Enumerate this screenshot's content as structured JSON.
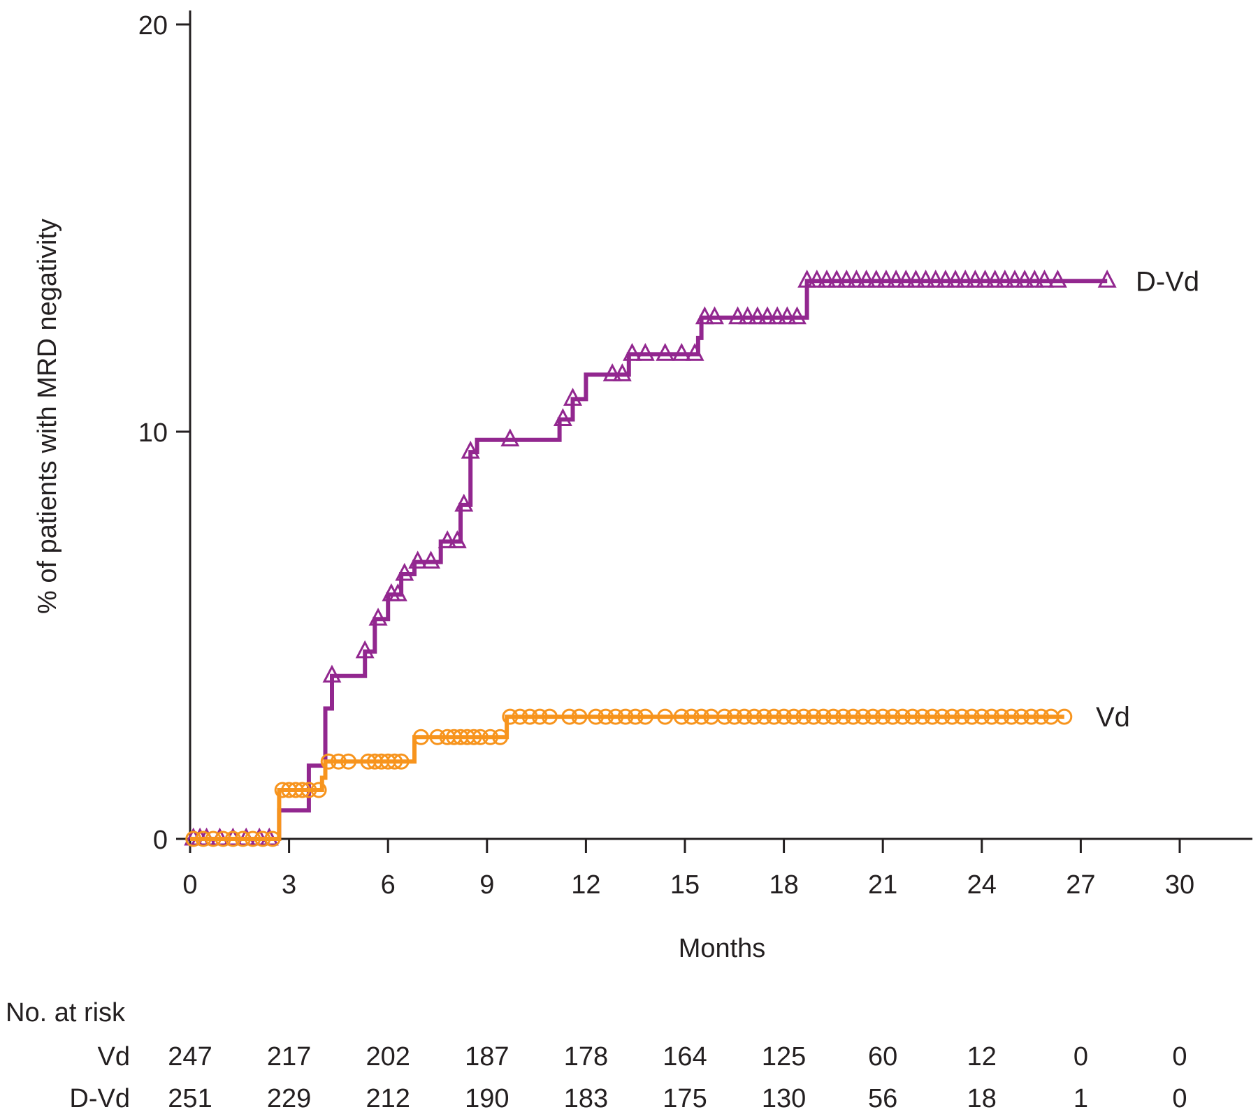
{
  "chart_data": {
    "type": "line",
    "title": "",
    "xlabel": "Months",
    "ylabel": "% of patients with MRD negativity",
    "xlim": [
      0,
      32
    ],
    "ylim": [
      0,
      20
    ],
    "x_ticks": [
      0,
      3,
      6,
      9,
      12,
      15,
      18,
      21,
      24,
      27,
      30
    ],
    "y_ticks": [
      0,
      10,
      20
    ],
    "colors": {
      "D-Vd": "#92278f",
      "Vd": "#f7941d",
      "axis": "#231f20"
    },
    "series": [
      {
        "name": "D-Vd",
        "marker": "triangle",
        "steps": [
          [
            0,
            0
          ],
          [
            2.7,
            0
          ],
          [
            2.7,
            0.7
          ],
          [
            3.6,
            0.7
          ],
          [
            3.6,
            1.8
          ],
          [
            4.1,
            1.8
          ],
          [
            4.1,
            3.2
          ],
          [
            4.3,
            3.2
          ],
          [
            4.3,
            4.0
          ],
          [
            5.3,
            4.0
          ],
          [
            5.3,
            4.6
          ],
          [
            5.6,
            4.6
          ],
          [
            5.6,
            5.4
          ],
          [
            6.0,
            5.4
          ],
          [
            6.0,
            6.0
          ],
          [
            6.4,
            6.0
          ],
          [
            6.4,
            6.5
          ],
          [
            6.8,
            6.5
          ],
          [
            6.8,
            6.8
          ],
          [
            7.6,
            6.8
          ],
          [
            7.6,
            7.3
          ],
          [
            8.2,
            7.3
          ],
          [
            8.2,
            8.2
          ],
          [
            8.5,
            8.2
          ],
          [
            8.5,
            9.5
          ],
          [
            8.7,
            9.5
          ],
          [
            8.7,
            9.8
          ],
          [
            11.2,
            9.8
          ],
          [
            11.2,
            10.3
          ],
          [
            11.6,
            10.3
          ],
          [
            11.6,
            10.8
          ],
          [
            12.0,
            10.8
          ],
          [
            12.0,
            11.4
          ],
          [
            13.3,
            11.4
          ],
          [
            13.3,
            11.9
          ],
          [
            15.4,
            11.9
          ],
          [
            15.4,
            12.3
          ],
          [
            15.5,
            12.3
          ],
          [
            15.5,
            12.8
          ],
          [
            18.7,
            12.8
          ],
          [
            18.7,
            13.7
          ],
          [
            27.8,
            13.7
          ]
        ],
        "censor_marks": [
          0.1,
          0.3,
          0.5,
          0.9,
          1.3,
          1.7,
          2.1,
          2.4,
          4.3,
          5.3,
          5.7,
          6.1,
          6.3,
          6.5,
          6.9,
          7.3,
          7.8,
          8.1,
          8.3,
          8.5,
          9.7,
          11.3,
          11.6,
          12.8,
          13.1,
          13.4,
          13.8,
          14.4,
          14.9,
          15.3,
          15.6,
          15.9,
          16.6,
          16.9,
          17.2,
          17.5,
          17.8,
          18.1,
          18.4,
          18.7,
          19.0,
          19.3,
          19.6,
          19.9,
          20.2,
          20.5,
          20.8,
          21.1,
          21.4,
          21.7,
          22.0,
          22.3,
          22.6,
          22.9,
          23.2,
          23.5,
          23.8,
          24.1,
          24.4,
          24.7,
          25.0,
          25.3,
          25.6,
          25.9,
          26.3,
          27.8
        ]
      },
      {
        "name": "Vd",
        "marker": "circle",
        "steps": [
          [
            0,
            0
          ],
          [
            2.7,
            0
          ],
          [
            2.7,
            1.2
          ],
          [
            4.0,
            1.2
          ],
          [
            4.0,
            1.5
          ],
          [
            4.1,
            1.5
          ],
          [
            4.1,
            1.9
          ],
          [
            6.8,
            1.9
          ],
          [
            6.8,
            2.5
          ],
          [
            9.6,
            2.5
          ],
          [
            9.6,
            3.0
          ],
          [
            26.5,
            3.0
          ]
        ],
        "censor_marks": [
          0.1,
          0.4,
          0.7,
          1.0,
          1.3,
          1.6,
          1.9,
          2.2,
          2.5,
          2.8,
          3.0,
          3.2,
          3.4,
          3.6,
          3.9,
          4.2,
          4.5,
          4.8,
          5.4,
          5.6,
          5.8,
          6.0,
          6.2,
          6.4,
          7.0,
          7.5,
          7.8,
          8.0,
          8.2,
          8.4,
          8.6,
          8.8,
          9.1,
          9.4,
          9.7,
          10.0,
          10.3,
          10.6,
          10.9,
          11.5,
          11.8,
          12.3,
          12.6,
          12.9,
          13.2,
          13.5,
          13.8,
          14.4,
          14.9,
          15.2,
          15.5,
          15.8,
          16.2,
          16.5,
          16.8,
          17.1,
          17.4,
          17.7,
          18.0,
          18.3,
          18.6,
          18.9,
          19.2,
          19.5,
          19.8,
          20.1,
          20.4,
          20.7,
          21.0,
          21.3,
          21.6,
          21.9,
          22.2,
          22.5,
          22.8,
          23.1,
          23.4,
          23.7,
          24.0,
          24.3,
          24.6,
          24.9,
          25.2,
          25.5,
          25.8,
          26.1,
          26.5
        ]
      }
    ],
    "legend": [
      {
        "name": "D-Vd",
        "label": "D-Vd",
        "y_value": 13.7
      },
      {
        "name": "Vd",
        "label": "Vd",
        "y_value": 3.0
      }
    ],
    "risk_table": {
      "title": "No. at risk",
      "times": [
        0,
        3,
        6,
        9,
        12,
        15,
        18,
        21,
        24,
        27,
        30
      ],
      "rows": [
        {
          "label": "Vd",
          "values": [
            "247",
            "217",
            "202",
            "187",
            "178",
            "164",
            "125",
            "60",
            "12",
            "0",
            "0"
          ]
        },
        {
          "label": "D-Vd",
          "values": [
            "251",
            "229",
            "212",
            "190",
            "183",
            "175",
            "130",
            "56",
            "18",
            "1",
            "0"
          ]
        }
      ]
    }
  }
}
